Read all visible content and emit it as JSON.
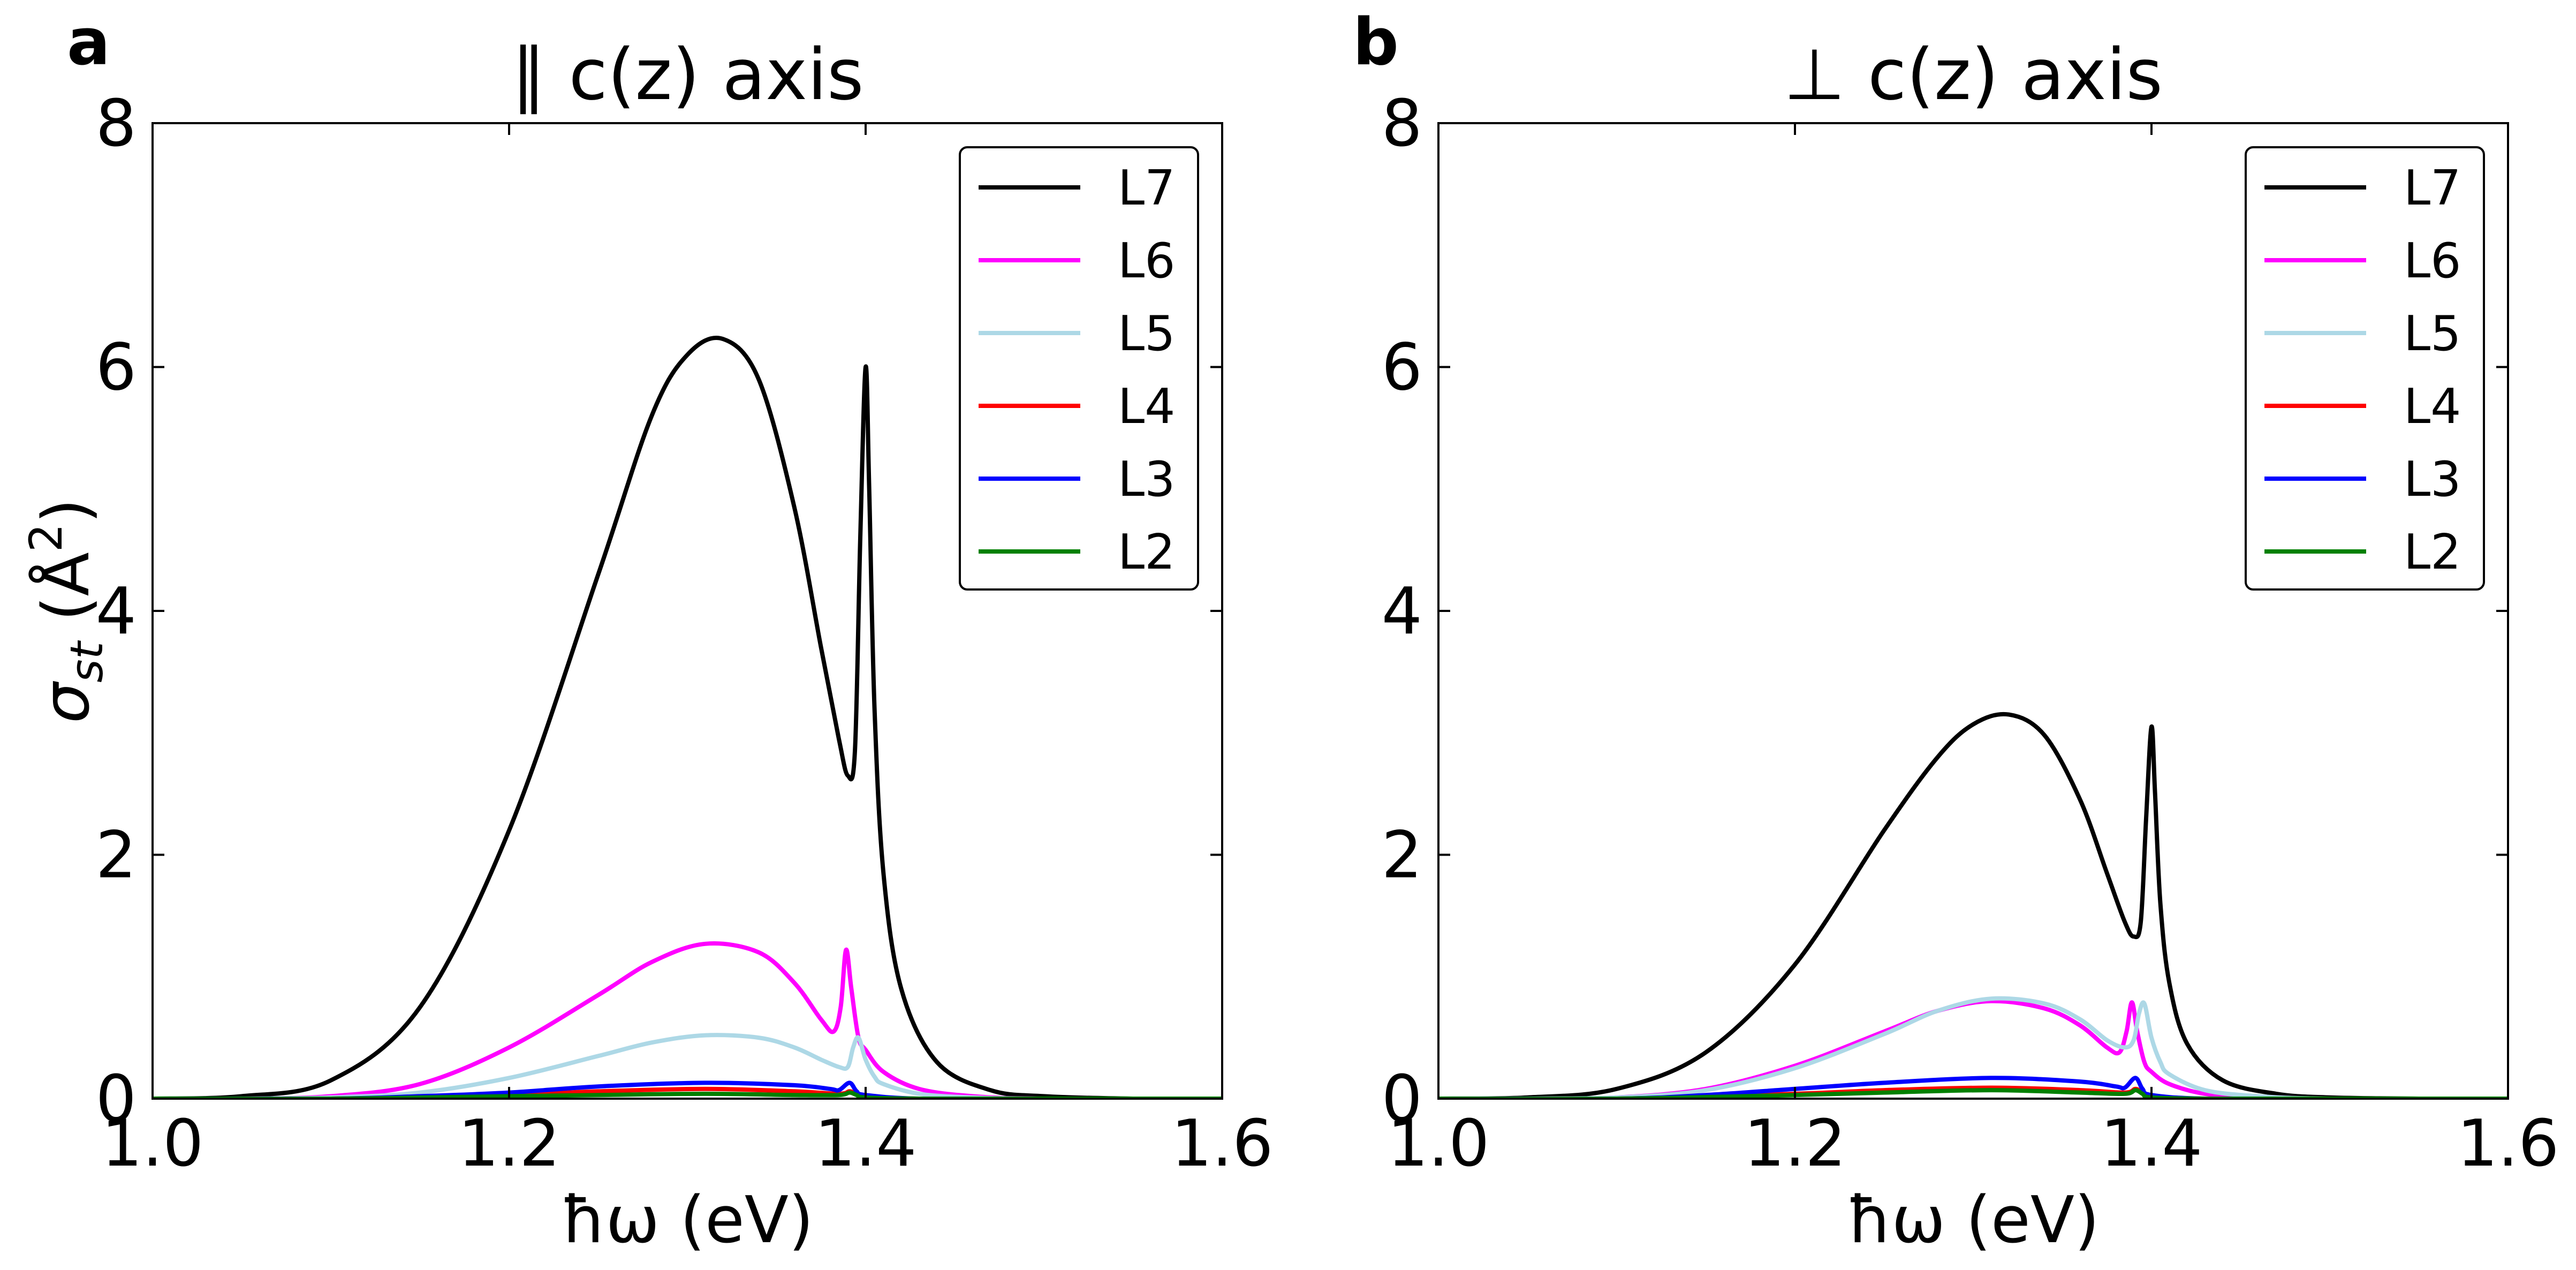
{
  "chart_data": [
    {
      "type": "line",
      "panel_label": "a",
      "title": "∥ c(z) axis",
      "xlabel": "ħω (eV)",
      "ylabel": "σst (Å2)",
      "ylabel_parts": {
        "symbol": "σ",
        "subscript": "st",
        "open": " (",
        "unit": "Å",
        "superscript": "2",
        "close": ")"
      },
      "xlim": [
        1.0,
        1.6
      ],
      "ylim": [
        0,
        8
      ],
      "xticks": [
        1.0,
        1.2,
        1.4,
        1.6
      ],
      "xtick_labels": [
        "1.0",
        "1.2",
        "1.4",
        "1.6"
      ],
      "yticks": [
        0,
        2,
        4,
        6,
        8
      ],
      "ytick_labels": [
        "0",
        "2",
        "4",
        "6",
        "8"
      ],
      "grid": false,
      "legend_position": "top-right",
      "series": [
        {
          "name": "L7",
          "color": "#000000",
          "x": [
            1.0,
            1.05,
            1.1,
            1.15,
            1.2,
            1.25,
            1.28,
            1.3,
            1.32,
            1.34,
            1.36,
            1.375,
            1.385,
            1.39,
            1.394,
            1.397,
            1.4,
            1.402,
            1.405,
            1.41,
            1.42,
            1.44,
            1.47,
            1.5,
            1.55,
            1.6
          ],
          "values": [
            0.0,
            0.02,
            0.15,
            0.75,
            2.2,
            4.3,
            5.6,
            6.1,
            6.23,
            5.9,
            4.85,
            3.7,
            2.95,
            2.65,
            2.85,
            4.6,
            6.0,
            5.0,
            3.2,
            1.85,
            0.9,
            0.3,
            0.07,
            0.02,
            0.0,
            0.0
          ]
        },
        {
          "name": "L6",
          "color": "#ff00ff",
          "x": [
            1.0,
            1.05,
            1.1,
            1.15,
            1.2,
            1.25,
            1.28,
            1.31,
            1.34,
            1.36,
            1.375,
            1.382,
            1.386,
            1.389,
            1.392,
            1.396,
            1.4,
            1.41,
            1.43,
            1.46,
            1.5,
            1.6
          ],
          "values": [
            0.0,
            0.0,
            0.02,
            0.12,
            0.42,
            0.85,
            1.12,
            1.27,
            1.2,
            0.95,
            0.65,
            0.55,
            0.75,
            1.22,
            0.9,
            0.5,
            0.4,
            0.22,
            0.08,
            0.02,
            0.0,
            0.0
          ]
        },
        {
          "name": "L5",
          "color": "#add8e6",
          "x": [
            1.0,
            1.05,
            1.1,
            1.15,
            1.2,
            1.25,
            1.28,
            1.31,
            1.34,
            1.36,
            1.375,
            1.385,
            1.39,
            1.393,
            1.396,
            1.4,
            1.405,
            1.41,
            1.43,
            1.46,
            1.5,
            1.6
          ],
          "values": [
            0.0,
            0.0,
            0.01,
            0.05,
            0.17,
            0.35,
            0.46,
            0.52,
            0.5,
            0.42,
            0.32,
            0.26,
            0.26,
            0.42,
            0.5,
            0.32,
            0.18,
            0.12,
            0.04,
            0.01,
            0.0,
            0.0
          ]
        },
        {
          "name": "L4",
          "color": "#ff0000",
          "x": [
            1.0,
            1.1,
            1.2,
            1.25,
            1.31,
            1.36,
            1.385,
            1.391,
            1.395,
            1.4,
            1.43,
            1.5,
            1.6
          ],
          "values": [
            0.0,
            0.0,
            0.03,
            0.06,
            0.08,
            0.06,
            0.04,
            0.06,
            0.04,
            0.02,
            0.0,
            0.0,
            0.0
          ]
        },
        {
          "name": "L3",
          "color": "#0000ff",
          "x": [
            1.0,
            1.1,
            1.15,
            1.2,
            1.25,
            1.31,
            1.36,
            1.38,
            1.385,
            1.391,
            1.395,
            1.4,
            1.43,
            1.5,
            1.6
          ],
          "values": [
            0.0,
            0.0,
            0.02,
            0.05,
            0.1,
            0.13,
            0.11,
            0.08,
            0.07,
            0.13,
            0.06,
            0.03,
            0.0,
            0.0,
            0.0
          ]
        },
        {
          "name": "L2",
          "color": "#008000",
          "x": [
            1.0,
            1.1,
            1.2,
            1.25,
            1.31,
            1.36,
            1.385,
            1.391,
            1.395,
            1.4,
            1.43,
            1.5,
            1.6
          ],
          "values": [
            0.0,
            0.0,
            0.02,
            0.03,
            0.04,
            0.03,
            0.03,
            0.05,
            0.03,
            0.01,
            0.0,
            0.0,
            0.0
          ]
        }
      ]
    },
    {
      "type": "line",
      "panel_label": "b",
      "title": "⊥ c(z) axis",
      "xlabel": "ħω (eV)",
      "ylabel": "",
      "xlim": [
        1.0,
        1.6
      ],
      "ylim": [
        0,
        8
      ],
      "xticks": [
        1.0,
        1.2,
        1.4,
        1.6
      ],
      "xtick_labels": [
        "1.0",
        "1.2",
        "1.4",
        "1.6"
      ],
      "yticks": [
        0,
        2,
        4,
        6,
        8
      ],
      "ytick_labels": [
        "0",
        "2",
        "4",
        "6",
        "8"
      ],
      "grid": false,
      "legend_position": "top-right",
      "series": [
        {
          "name": "L7",
          "color": "#000000",
          "x": [
            1.0,
            1.05,
            1.1,
            1.15,
            1.2,
            1.25,
            1.28,
            1.3,
            1.32,
            1.34,
            1.36,
            1.375,
            1.385,
            1.39,
            1.394,
            1.397,
            1.4,
            1.402,
            1.405,
            1.41,
            1.42,
            1.44,
            1.47,
            1.5,
            1.55,
            1.6
          ],
          "values": [
            0.0,
            0.01,
            0.08,
            0.38,
            1.1,
            2.2,
            2.8,
            3.07,
            3.15,
            2.98,
            2.45,
            1.85,
            1.45,
            1.33,
            1.45,
            2.3,
            3.05,
            2.5,
            1.6,
            0.95,
            0.45,
            0.15,
            0.04,
            0.01,
            0.0,
            0.0
          ]
        },
        {
          "name": "L6",
          "color": "#ff00ff",
          "x": [
            1.0,
            1.05,
            1.1,
            1.15,
            1.2,
            1.25,
            1.28,
            1.31,
            1.34,
            1.36,
            1.375,
            1.382,
            1.386,
            1.389,
            1.392,
            1.396,
            1.4,
            1.41,
            1.43,
            1.46,
            1.5,
            1.6
          ],
          "values": [
            0.0,
            0.0,
            0.01,
            0.08,
            0.27,
            0.55,
            0.72,
            0.8,
            0.74,
            0.6,
            0.42,
            0.38,
            0.55,
            0.79,
            0.55,
            0.3,
            0.22,
            0.12,
            0.04,
            0.01,
            0.0,
            0.0
          ]
        },
        {
          "name": "L5",
          "color": "#add8e6",
          "x": [
            1.0,
            1.05,
            1.1,
            1.15,
            1.2,
            1.25,
            1.28,
            1.31,
            1.34,
            1.36,
            1.375,
            1.385,
            1.39,
            1.393,
            1.396,
            1.4,
            1.405,
            1.41,
            1.43,
            1.46,
            1.5,
            1.6
          ],
          "values": [
            0.0,
            0.0,
            0.01,
            0.07,
            0.25,
            0.53,
            0.72,
            0.82,
            0.78,
            0.65,
            0.48,
            0.42,
            0.48,
            0.7,
            0.78,
            0.5,
            0.3,
            0.2,
            0.07,
            0.02,
            0.0,
            0.0
          ]
        },
        {
          "name": "L4",
          "color": "#ff0000",
          "x": [
            1.0,
            1.1,
            1.2,
            1.25,
            1.31,
            1.36,
            1.385,
            1.391,
            1.395,
            1.4,
            1.43,
            1.5,
            1.6
          ],
          "values": [
            0.0,
            0.0,
            0.04,
            0.07,
            0.09,
            0.07,
            0.05,
            0.08,
            0.05,
            0.02,
            0.0,
            0.0,
            0.0
          ]
        },
        {
          "name": "L3",
          "color": "#0000ff",
          "x": [
            1.0,
            1.1,
            1.15,
            1.2,
            1.25,
            1.31,
            1.36,
            1.38,
            1.385,
            1.391,
            1.395,
            1.4,
            1.43,
            1.5,
            1.6
          ],
          "values": [
            0.0,
            0.0,
            0.03,
            0.08,
            0.13,
            0.17,
            0.14,
            0.1,
            0.09,
            0.17,
            0.08,
            0.03,
            0.0,
            0.0,
            0.0
          ]
        },
        {
          "name": "L2",
          "color": "#008000",
          "x": [
            1.0,
            1.1,
            1.2,
            1.25,
            1.31,
            1.36,
            1.385,
            1.391,
            1.395,
            1.4,
            1.43,
            1.5,
            1.6
          ],
          "values": [
            0.0,
            0.0,
            0.03,
            0.05,
            0.07,
            0.05,
            0.04,
            0.07,
            0.04,
            0.01,
            0.0,
            0.0,
            0.0
          ]
        }
      ]
    }
  ]
}
